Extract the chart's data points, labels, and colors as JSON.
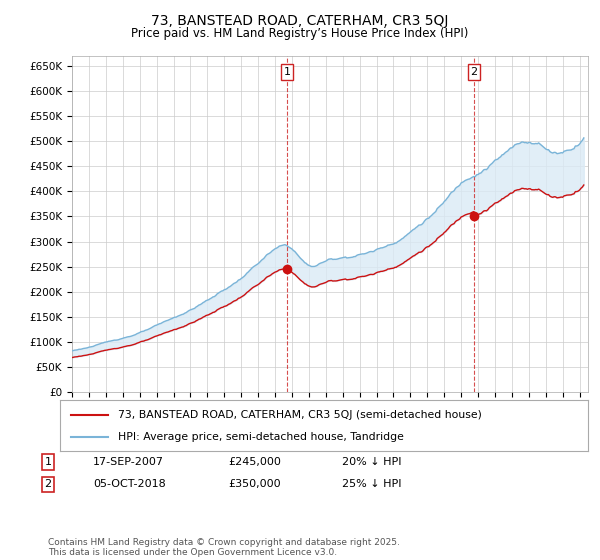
{
  "title": "73, BANSTEAD ROAD, CATERHAM, CR3 5QJ",
  "subtitle": "Price paid vs. HM Land Registry’s House Price Index (HPI)",
  "legend_line1": "73, BANSTEAD ROAD, CATERHAM, CR3 5QJ (semi-detached house)",
  "legend_line2": "HPI: Average price, semi-detached house, Tandridge",
  "transaction1_date": "17-SEP-2007",
  "transaction1_price": 245000,
  "transaction1_label": "20% ↓ HPI",
  "transaction2_date": "05-OCT-2018",
  "transaction2_price": 350000,
  "transaction2_label": "25% ↓ HPI",
  "hpi_color": "#7ab4d8",
  "price_color": "#cc1111",
  "fill_color": "#daeaf5",
  "vline_color": "#cc2222",
  "background_color": "#ffffff",
  "grid_color": "#cccccc",
  "ylim": [
    0,
    670000
  ],
  "yticks": [
    0,
    50000,
    100000,
    150000,
    200000,
    250000,
    300000,
    350000,
    400000,
    450000,
    500000,
    550000,
    600000,
    650000
  ],
  "footnote": "Contains HM Land Registry data © Crown copyright and database right 2025.\nThis data is licensed under the Open Government Licence v3.0."
}
